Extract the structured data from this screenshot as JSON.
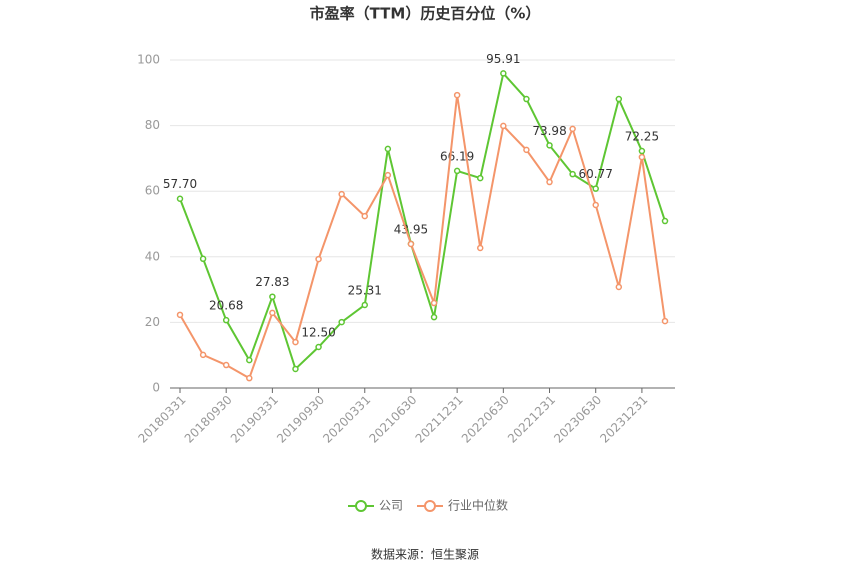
{
  "chart_data": {
    "type": "line",
    "title": "市盈率（TTM）历史百分位（%）",
    "source": "数据来源：恒生聚源",
    "categories": [
      "20180331",
      null,
      "20180930",
      null,
      "20190331",
      null,
      "20190930",
      null,
      "20200331",
      null,
      "20210630",
      null,
      "20211231",
      null,
      "20220630",
      null,
      "20221231",
      null,
      "20230630",
      null,
      "20231231",
      null
    ],
    "series": [
      {
        "name": "公司",
        "color": "#5ec633",
        "values": [
          57.7,
          39.4,
          20.68,
          8.5,
          27.83,
          5.8,
          12.5,
          20.1,
          25.31,
          72.9,
          43.95,
          21.6,
          66.19,
          64,
          95.91,
          88.1,
          73.98,
          65.2,
          60.77,
          88.1,
          72.25,
          50.9
        ],
        "value_labels": [
          "57.70",
          null,
          "20.68",
          null,
          "27.83",
          null,
          "12.50",
          null,
          "25.31",
          null,
          "43.95",
          null,
          "66.19",
          null,
          "95.91",
          null,
          "73.98",
          null,
          "60.77",
          null,
          "72.25",
          null
        ]
      },
      {
        "name": "行业中位数",
        "color": "#f4956a",
        "values": [
          22.3,
          10.1,
          7,
          3,
          22.9,
          14,
          39.3,
          59.1,
          52.4,
          64.9,
          43.9,
          25.9,
          89.3,
          42.7,
          79.9,
          72.6,
          62.8,
          79,
          55.8,
          30.8,
          70.4,
          20.4
        ]
      }
    ],
    "ylim": [
      0,
      100
    ],
    "yticks": [
      0,
      20,
      40,
      60,
      80,
      100
    ],
    "grid": true,
    "legend": "bottom"
  }
}
